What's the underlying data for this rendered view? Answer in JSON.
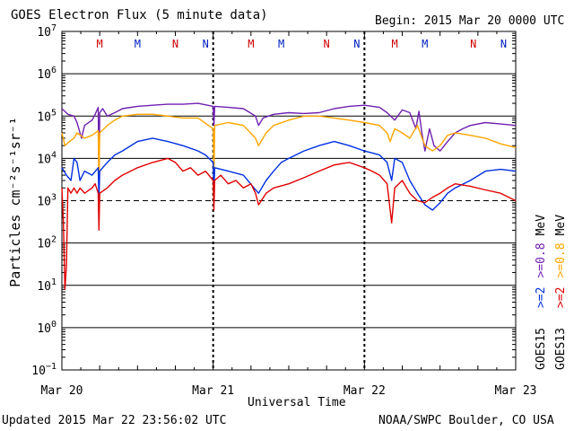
{
  "header": {
    "title": "GOES Electron Flux (5 minute data)",
    "begin": "Begin: 2015 Mar 20 0000 UTC"
  },
  "footer": {
    "updated": "Updated 2015 Mar 22 23:56:02 UTC",
    "credit": "NOAA/SWPC Boulder, CO USA"
  },
  "colors": {
    "goes13_08": "#ffa500",
    "goes13_2": "#e00000",
    "goes15_08": "#7020b0",
    "goes15_2": "#0030e0",
    "marker_m": "#d00000",
    "marker_n": "#0020c0"
  },
  "chart_data": {
    "type": "line",
    "title": "GOES Electron Flux (5 minute data)",
    "xlabel": "Universal Time",
    "ylabel": "Particles cm⁻²s⁻¹sr⁻¹",
    "y_scale": "log",
    "ylim": [
      0.1,
      10000000
    ],
    "y_ticks": [
      0.1,
      1,
      10,
      100,
      1000,
      10000,
      100000,
      1000000,
      10000000
    ],
    "x_ticks": [
      "Mar 20",
      "Mar 21",
      "Mar 22",
      "Mar 23"
    ],
    "x_range_days": [
      "2015-03-20",
      "2015-03-23"
    ],
    "threshold_line": 1000,
    "grid": true,
    "legend_goes15": {
      "sat": "GOES15",
      "a": ">=2",
      "b": ">=0.8",
      "unit": "MeV"
    },
    "legend_goes13": {
      "sat": "GOES13",
      "a": ">=2",
      "b": ">=0.8",
      "unit": "MeV"
    },
    "markers": [
      {
        "label": "M",
        "color": "m",
        "day": 0.25
      },
      {
        "label": "M",
        "color": "n",
        "day": 0.5
      },
      {
        "label": "N",
        "color": "m",
        "day": 0.75
      },
      {
        "label": "N",
        "color": "n",
        "day": 0.95
      },
      {
        "label": "M",
        "color": "m",
        "day": 1.25
      },
      {
        "label": "M",
        "color": "n",
        "day": 1.45
      },
      {
        "label": "N",
        "color": "m",
        "day": 1.75
      },
      {
        "label": "N",
        "color": "n",
        "day": 1.95
      },
      {
        "label": "M",
        "color": "m",
        "day": 2.2
      },
      {
        "label": "M",
        "color": "n",
        "day": 2.4
      },
      {
        "label": "N",
        "color": "m",
        "day": 2.72
      },
      {
        "label": "N",
        "color": "n",
        "day": 2.92
      }
    ],
    "series": [
      {
        "name": "GOES15 >=0.8 MeV",
        "color_key": "goes15_08",
        "points": [
          [
            0.0,
            150000
          ],
          [
            0.04,
            110000
          ],
          [
            0.08,
            100000
          ],
          [
            0.1,
            70000
          ],
          [
            0.13,
            30000
          ],
          [
            0.15,
            60000
          ],
          [
            0.2,
            80000
          ],
          [
            0.22,
            110000
          ],
          [
            0.24,
            160000
          ],
          [
            0.245,
            3000
          ],
          [
            0.25,
            120000
          ],
          [
            0.27,
            150000
          ],
          [
            0.3,
            100000
          ],
          [
            0.35,
            120000
          ],
          [
            0.4,
            150000
          ],
          [
            0.5,
            170000
          ],
          [
            0.6,
            180000
          ],
          [
            0.7,
            190000
          ],
          [
            0.8,
            190000
          ],
          [
            0.9,
            200000
          ],
          [
            1.0,
            170000
          ],
          [
            1.005,
            60000
          ],
          [
            1.01,
            170000
          ],
          [
            1.1,
            160000
          ],
          [
            1.2,
            150000
          ],
          [
            1.28,
            100000
          ],
          [
            1.3,
            60000
          ],
          [
            1.33,
            90000
          ],
          [
            1.4,
            110000
          ],
          [
            1.5,
            120000
          ],
          [
            1.6,
            115000
          ],
          [
            1.7,
            120000
          ],
          [
            1.8,
            150000
          ],
          [
            1.9,
            170000
          ],
          [
            2.0,
            180000
          ],
          [
            2.1,
            160000
          ],
          [
            2.15,
            120000
          ],
          [
            2.2,
            80000
          ],
          [
            2.25,
            140000
          ],
          [
            2.3,
            120000
          ],
          [
            2.34,
            50000
          ],
          [
            2.36,
            130000
          ],
          [
            2.38,
            40000
          ],
          [
            2.4,
            15000
          ],
          [
            2.43,
            50000
          ],
          [
            2.46,
            20000
          ],
          [
            2.5,
            15000
          ],
          [
            2.55,
            25000
          ],
          [
            2.6,
            40000
          ],
          [
            2.65,
            50000
          ],
          [
            2.7,
            60000
          ],
          [
            2.8,
            70000
          ],
          [
            2.9,
            65000
          ],
          [
            3.0,
            60000
          ]
        ]
      },
      {
        "name": "GOES13 >=0.8 MeV",
        "color_key": "goes13_08",
        "points": [
          [
            0.0,
            40000
          ],
          [
            0.02,
            20000
          ],
          [
            0.05,
            25000
          ],
          [
            0.08,
            30000
          ],
          [
            0.1,
            40000
          ],
          [
            0.15,
            30000
          ],
          [
            0.2,
            35000
          ],
          [
            0.24,
            45000
          ],
          [
            0.245,
            2500
          ],
          [
            0.25,
            40000
          ],
          [
            0.3,
            60000
          ],
          [
            0.35,
            80000
          ],
          [
            0.4,
            100000
          ],
          [
            0.5,
            110000
          ],
          [
            0.6,
            110000
          ],
          [
            0.7,
            100000
          ],
          [
            0.8,
            90000
          ],
          [
            0.9,
            90000
          ],
          [
            1.0,
            50000
          ],
          [
            1.005,
            3000
          ],
          [
            1.01,
            60000
          ],
          [
            1.1,
            70000
          ],
          [
            1.2,
            60000
          ],
          [
            1.28,
            30000
          ],
          [
            1.3,
            20000
          ],
          [
            1.35,
            40000
          ],
          [
            1.4,
            60000
          ],
          [
            1.5,
            80000
          ],
          [
            1.6,
            100000
          ],
          [
            1.7,
            100000
          ],
          [
            1.8,
            90000
          ],
          [
            1.9,
            80000
          ],
          [
            2.0,
            70000
          ],
          [
            2.1,
            60000
          ],
          [
            2.15,
            40000
          ],
          [
            2.17,
            25000
          ],
          [
            2.2,
            50000
          ],
          [
            2.25,
            40000
          ],
          [
            2.3,
            30000
          ],
          [
            2.35,
            60000
          ],
          [
            2.4,
            20000
          ],
          [
            2.45,
            15000
          ],
          [
            2.5,
            20000
          ],
          [
            2.55,
            35000
          ],
          [
            2.6,
            40000
          ],
          [
            2.7,
            35000
          ],
          [
            2.8,
            30000
          ],
          [
            2.9,
            22000
          ],
          [
            3.0,
            18000
          ]
        ]
      },
      {
        "name": "GOES15 >=2 MeV",
        "color_key": "goes15_2",
        "points": [
          [
            0.0,
            6000
          ],
          [
            0.03,
            4000
          ],
          [
            0.06,
            3000
          ],
          [
            0.08,
            10000
          ],
          [
            0.1,
            8000
          ],
          [
            0.12,
            3000
          ],
          [
            0.15,
            5000
          ],
          [
            0.2,
            4000
          ],
          [
            0.24,
            6000
          ],
          [
            0.245,
            1000
          ],
          [
            0.25,
            5000
          ],
          [
            0.3,
            8000
          ],
          [
            0.35,
            12000
          ],
          [
            0.4,
            15000
          ],
          [
            0.5,
            25000
          ],
          [
            0.6,
            30000
          ],
          [
            0.7,
            25000
          ],
          [
            0.8,
            20000
          ],
          [
            0.9,
            15000
          ],
          [
            0.95,
            12000
          ],
          [
            1.0,
            8000
          ],
          [
            1.005,
            1500
          ],
          [
            1.01,
            6000
          ],
          [
            1.1,
            5000
          ],
          [
            1.2,
            4000
          ],
          [
            1.27,
            2000
          ],
          [
            1.3,
            1500
          ],
          [
            1.35,
            3000
          ],
          [
            1.4,
            5000
          ],
          [
            1.45,
            8000
          ],
          [
            1.5,
            10000
          ],
          [
            1.6,
            15000
          ],
          [
            1.7,
            20000
          ],
          [
            1.8,
            25000
          ],
          [
            1.9,
            20000
          ],
          [
            2.0,
            15000
          ],
          [
            2.1,
            12000
          ],
          [
            2.15,
            8000
          ],
          [
            2.18,
            3000
          ],
          [
            2.2,
            10000
          ],
          [
            2.25,
            8000
          ],
          [
            2.3,
            3000
          ],
          [
            2.35,
            1500
          ],
          [
            2.4,
            800
          ],
          [
            2.45,
            600
          ],
          [
            2.5,
            900
          ],
          [
            2.55,
            1500
          ],
          [
            2.6,
            2000
          ],
          [
            2.7,
            3000
          ],
          [
            2.8,
            5000
          ],
          [
            2.9,
            5500
          ],
          [
            3.0,
            5000
          ]
        ]
      },
      {
        "name": "GOES13 >=2 MeV",
        "color_key": "goes13_2",
        "points": [
          [
            0.0,
            2000
          ],
          [
            0.01,
            300
          ],
          [
            0.02,
            8
          ],
          [
            0.03,
            30
          ],
          [
            0.04,
            2000
          ],
          [
            0.06,
            1500
          ],
          [
            0.08,
            2000
          ],
          [
            0.1,
            1500
          ],
          [
            0.12,
            2000
          ],
          [
            0.15,
            1500
          ],
          [
            0.2,
            2000
          ],
          [
            0.22,
            2500
          ],
          [
            0.24,
            1500
          ],
          [
            0.245,
            200
          ],
          [
            0.25,
            1500
          ],
          [
            0.3,
            2000
          ],
          [
            0.35,
            3000
          ],
          [
            0.4,
            4000
          ],
          [
            0.5,
            6000
          ],
          [
            0.6,
            8000
          ],
          [
            0.7,
            10000
          ],
          [
            0.75,
            8000
          ],
          [
            0.8,
            5000
          ],
          [
            0.85,
            6000
          ],
          [
            0.9,
            4000
          ],
          [
            0.95,
            5000
          ],
          [
            1.0,
            3000
          ],
          [
            1.005,
            600
          ],
          [
            1.01,
            3000
          ],
          [
            1.05,
            4000
          ],
          [
            1.1,
            2500
          ],
          [
            1.15,
            3000
          ],
          [
            1.2,
            2000
          ],
          [
            1.25,
            2500
          ],
          [
            1.28,
            1500
          ],
          [
            1.3,
            800
          ],
          [
            1.35,
            1500
          ],
          [
            1.4,
            2000
          ],
          [
            1.5,
            2500
          ],
          [
            1.6,
            3500
          ],
          [
            1.7,
            5000
          ],
          [
            1.8,
            7000
          ],
          [
            1.9,
            8000
          ],
          [
            2.0,
            6000
          ],
          [
            2.05,
            5000
          ],
          [
            2.1,
            4000
          ],
          [
            2.15,
            2500
          ],
          [
            2.18,
            300
          ],
          [
            2.2,
            2000
          ],
          [
            2.25,
            3000
          ],
          [
            2.3,
            1500
          ],
          [
            2.35,
            1000
          ],
          [
            2.4,
            900
          ],
          [
            2.45,
            1200
          ],
          [
            2.5,
            1500
          ],
          [
            2.55,
            2000
          ],
          [
            2.6,
            2500
          ],
          [
            2.7,
            2200
          ],
          [
            2.8,
            1800
          ],
          [
            2.9,
            1500
          ],
          [
            3.0,
            1000
          ]
        ]
      }
    ]
  }
}
